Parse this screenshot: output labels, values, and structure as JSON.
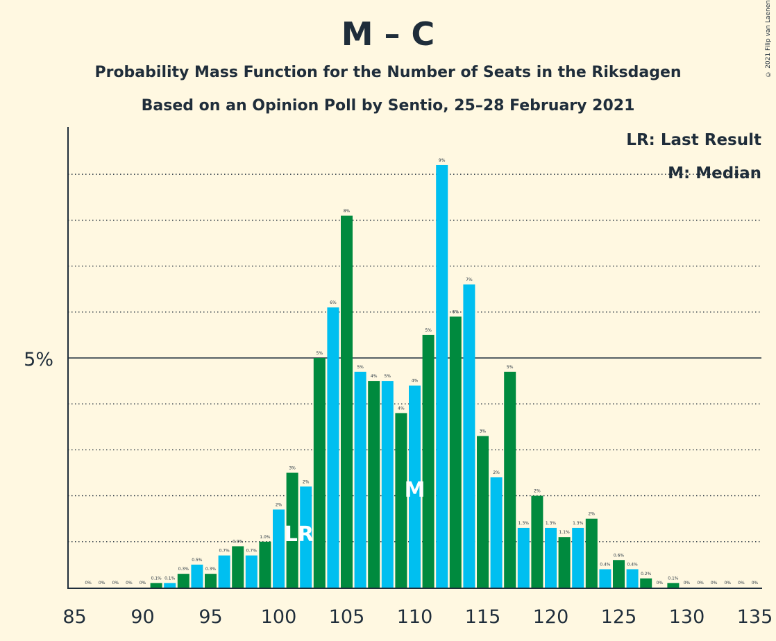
{
  "title": "M – C",
  "subtitle": "Probability Mass Function for the Number of Seats in the Riksdagen",
  "subtitle2": "Based on an Opinion Poll by Sentio, 25–28 February 2021",
  "copyright": "© 2021 Filip van Laenen",
  "legend": {
    "lr": "LR: Last Result",
    "m": "M: Median"
  },
  "chart_data": {
    "type": "bar",
    "x": [
      85,
      86,
      87,
      88,
      89,
      90,
      91,
      92,
      93,
      94,
      95,
      96,
      97,
      98,
      99,
      100,
      101,
      102,
      103,
      104,
      105,
      106,
      107,
      108,
      109,
      110,
      111,
      112,
      113,
      114,
      115,
      116,
      117,
      118,
      119,
      120,
      121,
      122,
      123,
      124,
      125,
      126,
      127,
      128,
      129,
      130,
      131,
      132,
      133,
      134,
      135
    ],
    "values": [
      0,
      0,
      0,
      0,
      0,
      0,
      0.1,
      0.1,
      0.3,
      0.5,
      0.3,
      0.7,
      0.9,
      0.7,
      1.0,
      1.7,
      2.5,
      2.2,
      5.0,
      6.1,
      8.1,
      4.7,
      4.5,
      4.5,
      3.8,
      4.4,
      5.5,
      9.2,
      5.9,
      6.6,
      3.3,
      2.4,
      4.7,
      1.3,
      2.0,
      1.3,
      1.1,
      1.3,
      1.5,
      0.4,
      0.6,
      0.4,
      0.2,
      0,
      0.1,
      0,
      0,
      0,
      0,
      0,
      0
    ],
    "labels": [
      "",
      "0%",
      "0%",
      "0%",
      "0%",
      "0%",
      "0.1%",
      "0.1%",
      "0.3%",
      "0.5%",
      "0.3%",
      "0.7%",
      "0.9%",
      "0.7%",
      "1.0%",
      "2%",
      "3%",
      "2%",
      "5%",
      "6%",
      "8%",
      "5%",
      "4%",
      "5%",
      "4%",
      "4%",
      "5%",
      "9%",
      "6%",
      "7%",
      "3%",
      "2%",
      "5%",
      "1.3%",
      "2%",
      "1.3%",
      "1.1%",
      "1.3%",
      "2%",
      "0.4%",
      "0.6%",
      "0.4%",
      "0.2%",
      "0%",
      "0.1%",
      "0%",
      "0%",
      "0%",
      "0%",
      "0%",
      "0%"
    ],
    "xticks": [
      85,
      90,
      95,
      100,
      105,
      110,
      115,
      120,
      125,
      130,
      135
    ],
    "ytick_label": "5%",
    "ylim": [
      0,
      10
    ],
    "last_result": 101,
    "median": 110,
    "last_result_label": "LR",
    "median_label": "M",
    "colors": {
      "even": "#00BFF0",
      "odd": "#008A3E"
    }
  }
}
